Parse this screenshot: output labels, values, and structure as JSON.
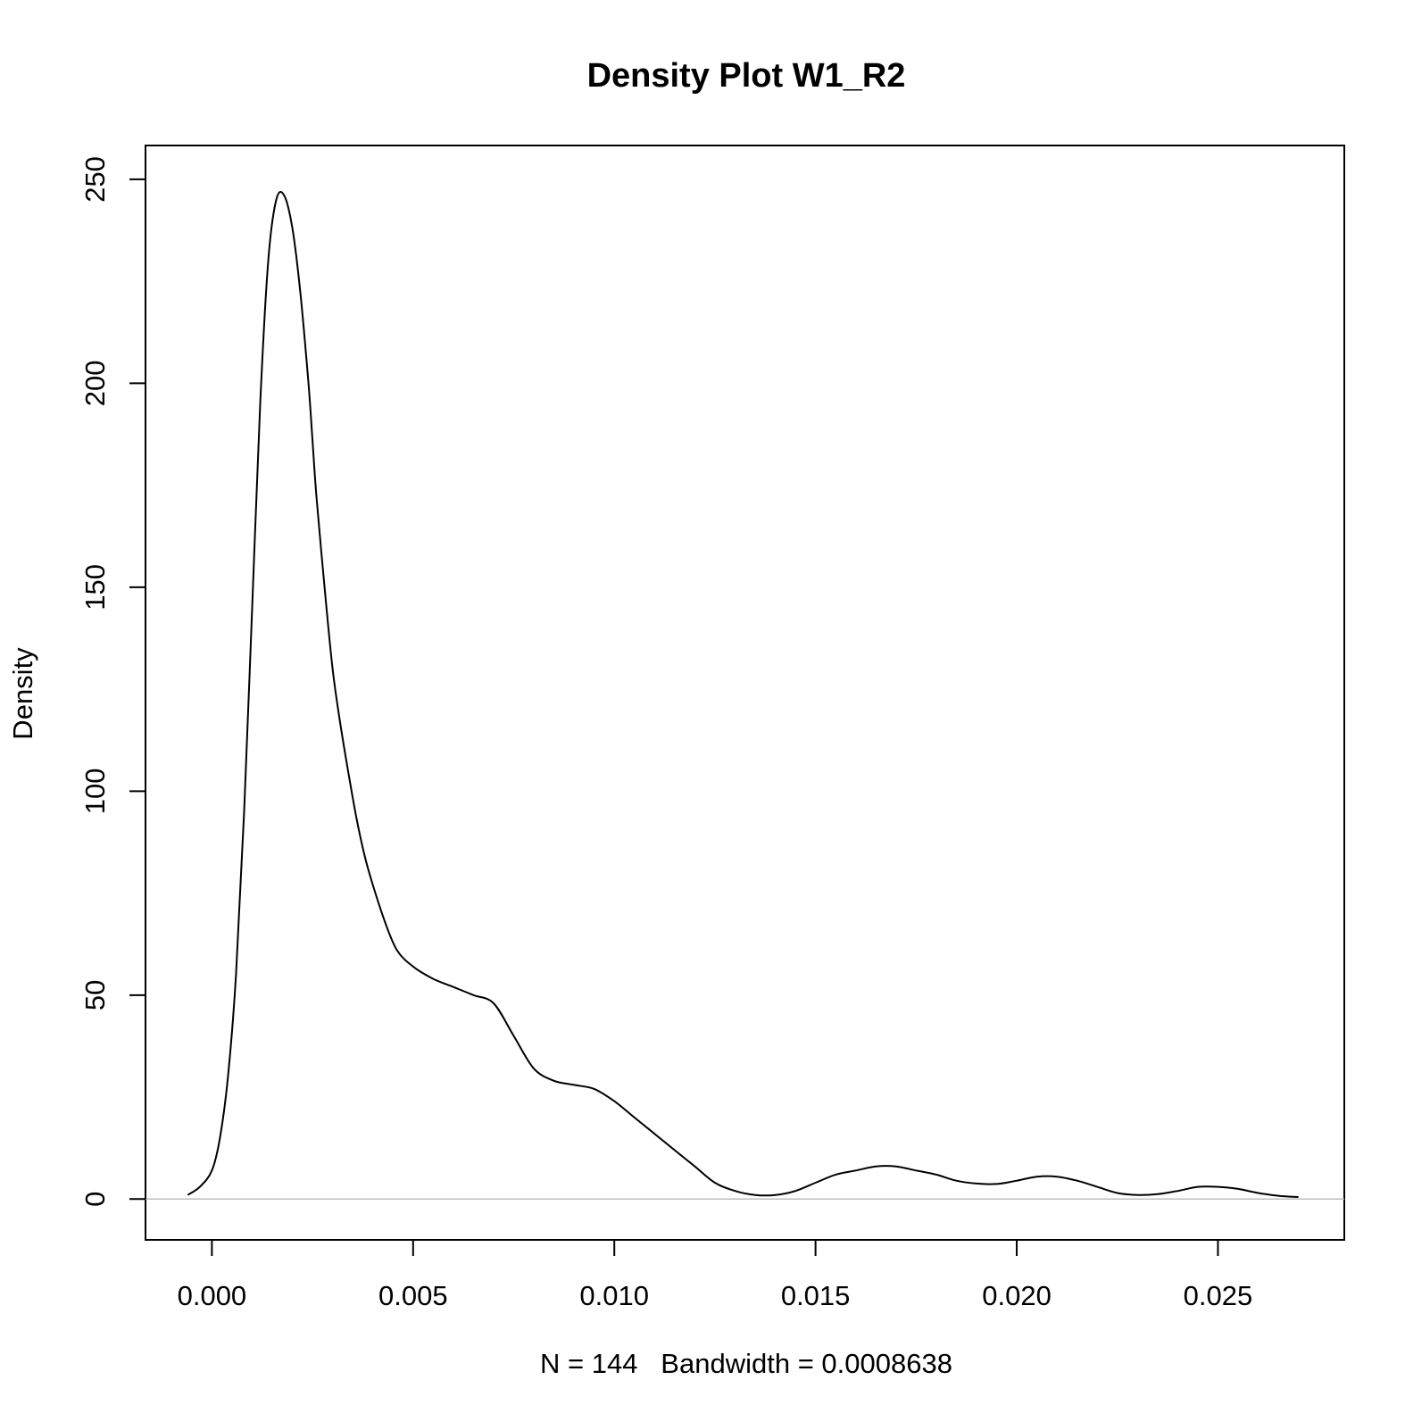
{
  "chart_data": {
    "type": "line",
    "title": "Density Plot W1_R2",
    "xlabel": "N = 144   Bandwidth = 0.0008638",
    "ylabel": "Density",
    "xlim": [
      -0.00165,
      0.02814
    ],
    "ylim": [
      -10,
      258.3
    ],
    "xticks": [
      0.0,
      0.005,
      0.01,
      0.015,
      0.02,
      0.025
    ],
    "xtick_labels": [
      "0.000",
      "0.005",
      "0.010",
      "0.015",
      "0.020",
      "0.025"
    ],
    "yticks": [
      0,
      50,
      100,
      150,
      200,
      250
    ],
    "ytick_labels": [
      "0",
      "50",
      "100",
      "150",
      "200",
      "250"
    ],
    "grid": false,
    "baseline": 0,
    "colors": {
      "line": "#000000",
      "baseline": "#bebebe",
      "frame": "#000000"
    },
    "series": [
      {
        "x": [
          -0.0006,
          -0.0003,
          0.0,
          0.0002,
          0.0004,
          0.0006,
          0.0008,
          0.001,
          0.0012,
          0.0014,
          0.0016,
          0.0018,
          0.002,
          0.0022,
          0.0024,
          0.0025,
          0.0026,
          0.0028,
          0.003,
          0.0032,
          0.0034,
          0.0036,
          0.0038,
          0.004,
          0.0043,
          0.0046,
          0.005,
          0.0055,
          0.006,
          0.0065,
          0.007,
          0.0075,
          0.008,
          0.0085,
          0.009,
          0.0095,
          0.01,
          0.0105,
          0.011,
          0.0115,
          0.012,
          0.0125,
          0.013,
          0.0135,
          0.014,
          0.0145,
          0.015,
          0.0155,
          0.016,
          0.0165,
          0.017,
          0.0175,
          0.018,
          0.0185,
          0.019,
          0.0195,
          0.02,
          0.0205,
          0.021,
          0.0215,
          0.022,
          0.0225,
          0.023,
          0.0235,
          0.024,
          0.0245,
          0.025,
          0.0255,
          0.026,
          0.0265,
          0.027
        ],
        "y": [
          1,
          3,
          7,
          15,
          30,
          55,
          95,
          145,
          195,
          230,
          245,
          246,
          238,
          222,
          200,
          186,
          172,
          150,
          130,
          116,
          104,
          93,
          84,
          77,
          68,
          61,
          57,
          54,
          52,
          50,
          48,
          40,
          32,
          29,
          28,
          27,
          24,
          20,
          16,
          12,
          8,
          4,
          2,
          1,
          1,
          2,
          4,
          6,
          7,
          8,
          8,
          7,
          6,
          4.5,
          3.8,
          3.7,
          4.5,
          5.5,
          5.5,
          4.5,
          3,
          1.5,
          1,
          1.2,
          2,
          3,
          3,
          2.5,
          1.5,
          0.8,
          0.5
        ]
      }
    ]
  }
}
